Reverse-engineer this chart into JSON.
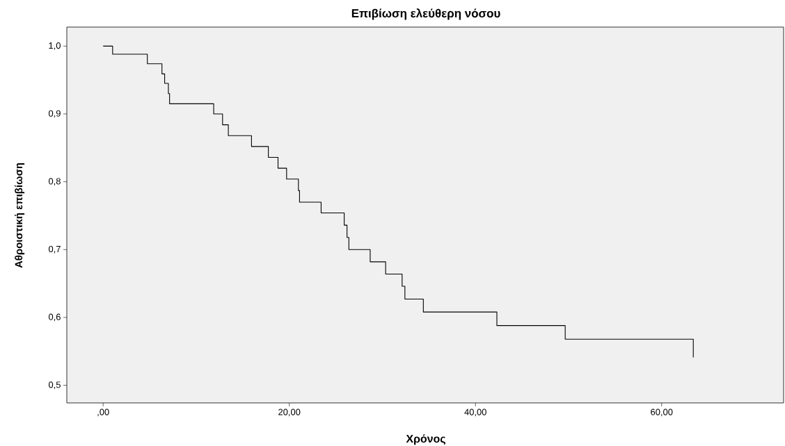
{
  "chart_data": {
    "type": "step",
    "title": "Επιβίωση ελεύθερη νόσου",
    "xlabel": "Χρόνος",
    "ylabel": "Αθροιστική επιβίωση",
    "series": [
      {
        "color": "#000000",
        "x": [
          0,
          1.02,
          4.75,
          6.32,
          6.61,
          7.01,
          7.14,
          11.88,
          12.83,
          13.45,
          15.94,
          17.75,
          18.79,
          19.71,
          20.98,
          21.1,
          23.42,
          25.9,
          26.2,
          26.4,
          28.69,
          30.35,
          32.12,
          32.42,
          34.4,
          42.3,
          49.64,
          63.4
        ],
        "values": [
          1.0,
          0.988,
          0.974,
          0.959,
          0.945,
          0.93,
          0.915,
          0.9,
          0.884,
          0.868,
          0.852,
          0.836,
          0.82,
          0.804,
          0.787,
          0.77,
          0.754,
          0.736,
          0.718,
          0.7,
          0.682,
          0.664,
          0.646,
          0.627,
          0.608,
          0.588,
          0.568,
          0.541
        ]
      }
    ],
    "xlim": [
      -3.9,
      73.1
    ],
    "ylim": [
      0.474,
      1.028
    ],
    "xticks": [
      {
        "value": 0,
        "label": ",00"
      },
      {
        "value": 20,
        "label": "20,00"
      },
      {
        "value": 40,
        "label": "40,00"
      },
      {
        "value": 60,
        "label": "60,00"
      }
    ],
    "yticks": [
      {
        "value": 0.5,
        "label": "0,5"
      },
      {
        "value": 0.6,
        "label": "0,6"
      },
      {
        "value": 0.7,
        "label": "0,7"
      },
      {
        "value": 0.8,
        "label": "0,8"
      },
      {
        "value": 0.9,
        "label": "0,9"
      },
      {
        "value": 1.0,
        "label": "1,0"
      }
    ],
    "marker": "none"
  }
}
